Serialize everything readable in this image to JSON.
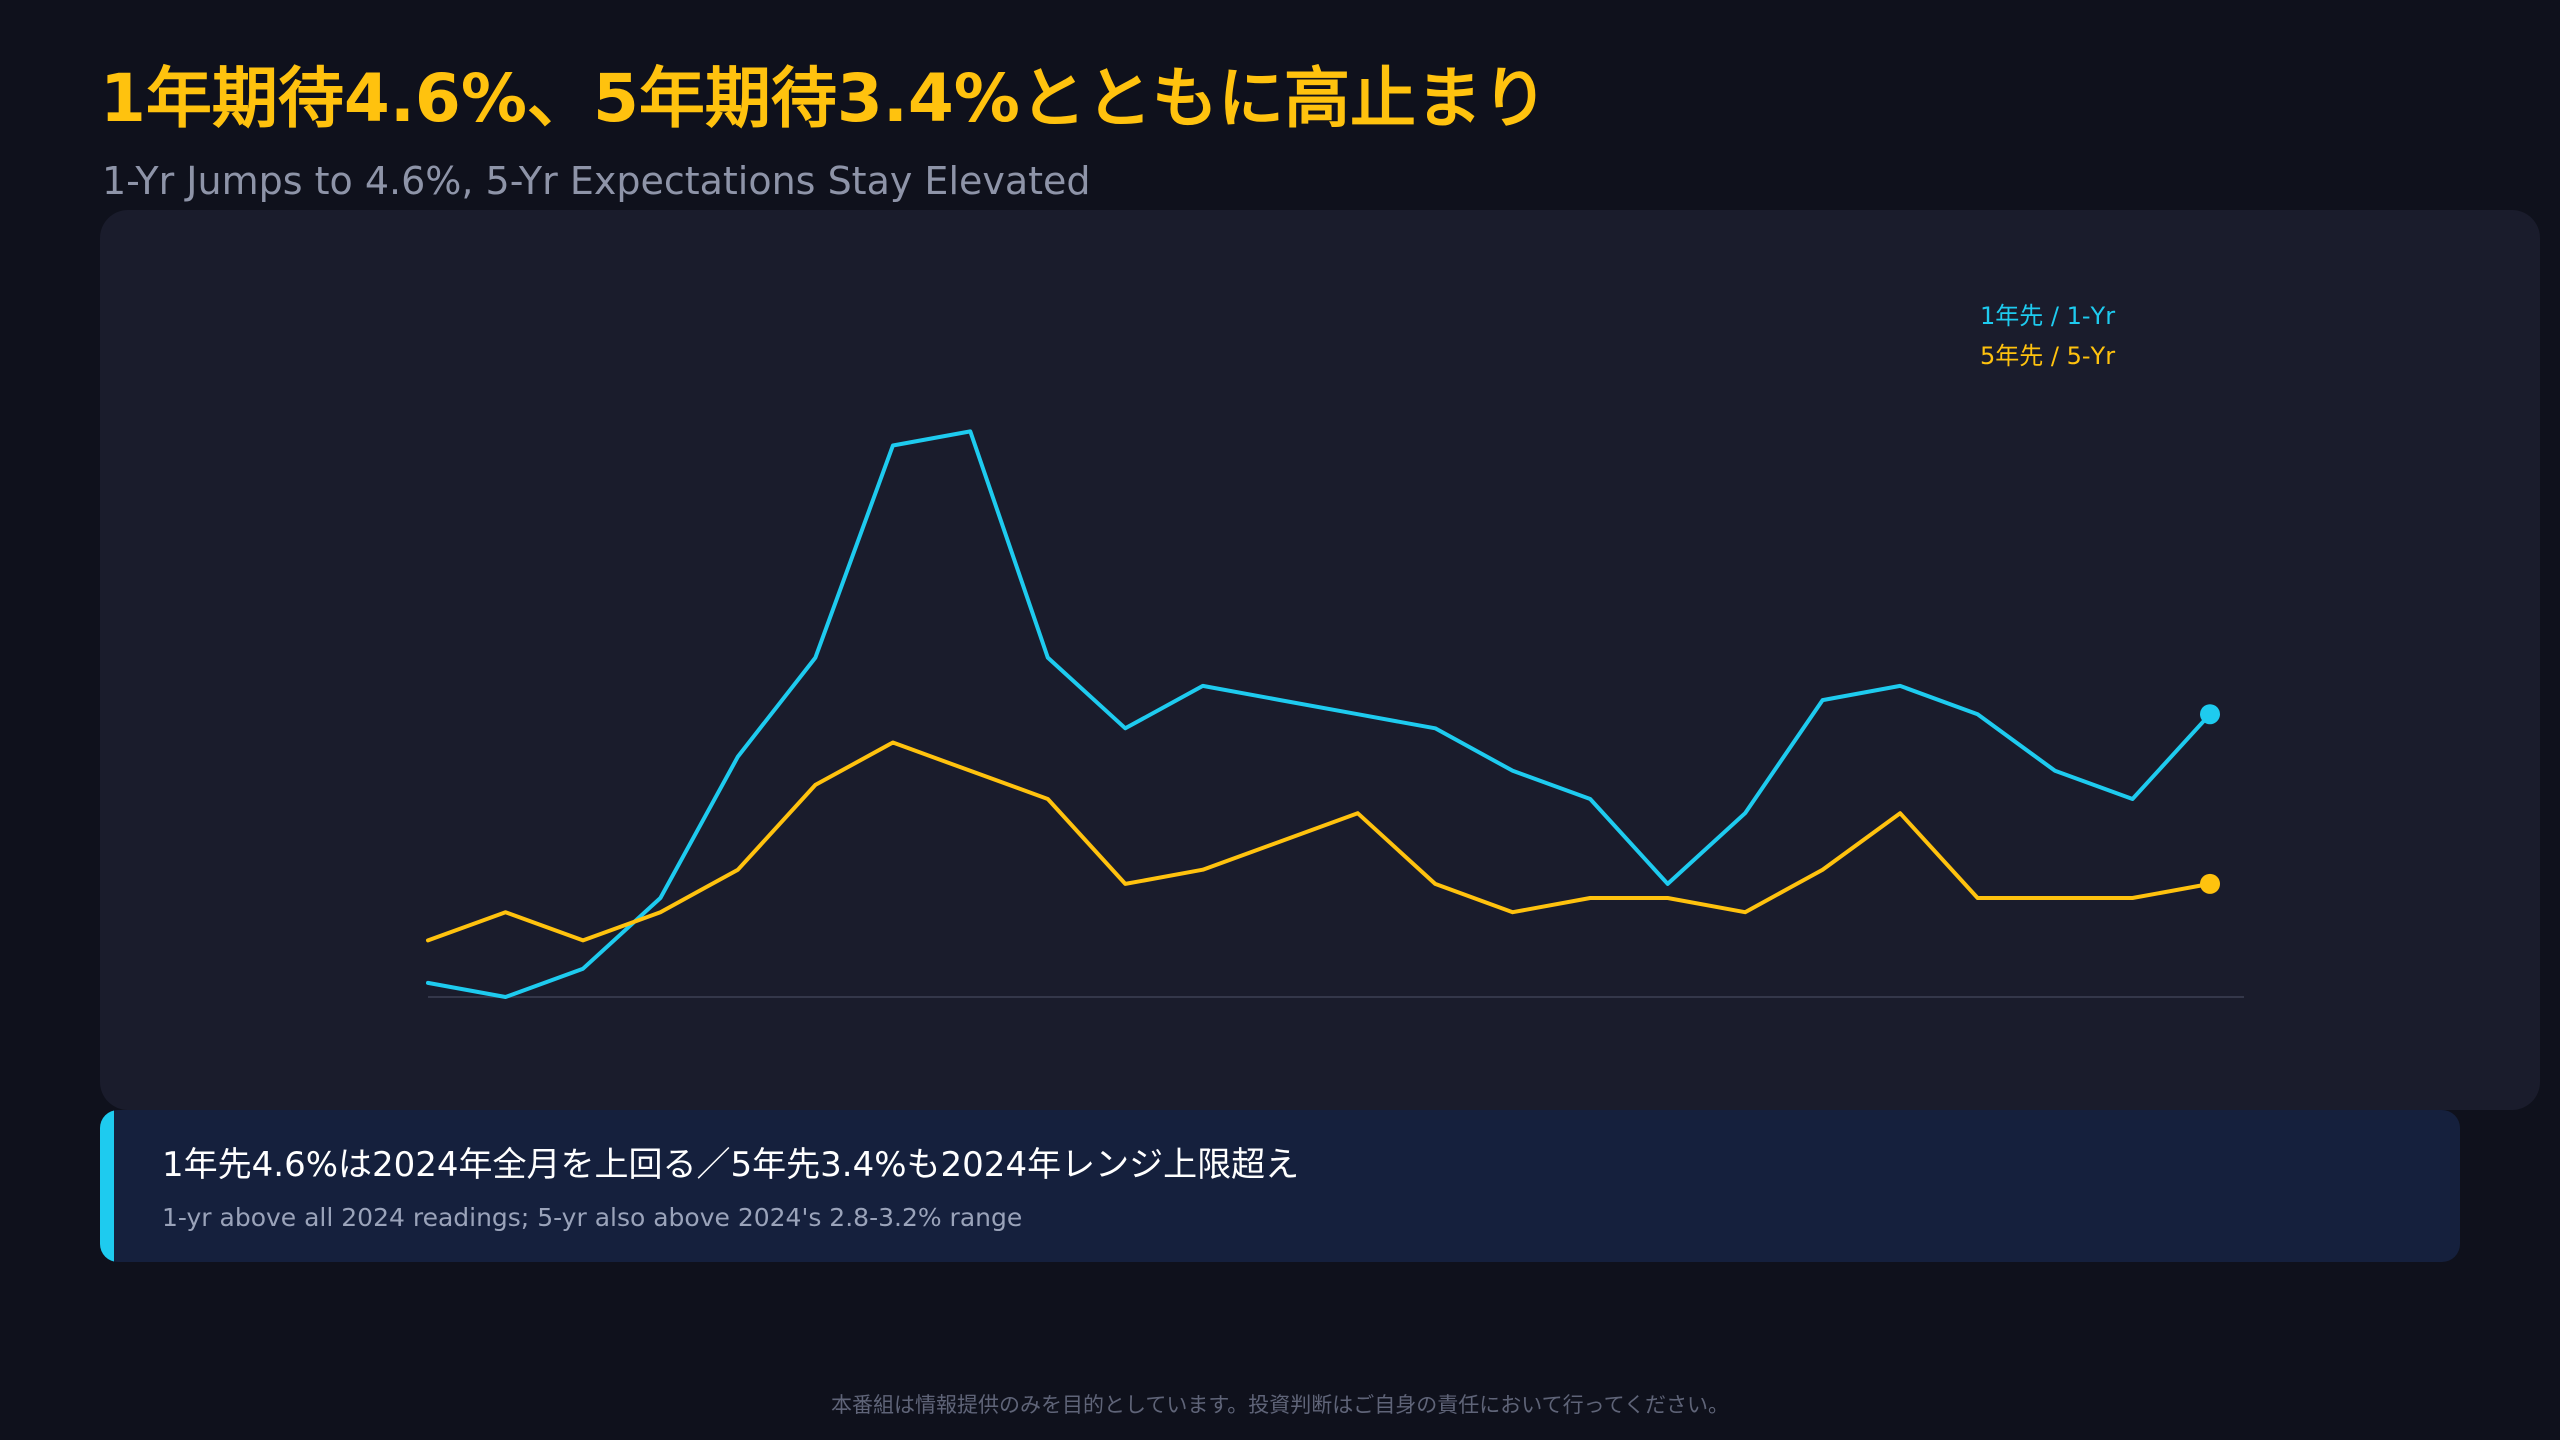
{
  "header": {
    "title": "1年期待4.6%、5年期待3.4%とともに高止まり",
    "subtitle": "1-Yr Jumps to 4.6%, 5-Yr Expectations Stay Elevated"
  },
  "chart_data": {
    "type": "line",
    "title": "1年期待4.6%、5年期待3.4%とともに高止まり",
    "subtitle": "1-Yr Jumps to 4.6%, 5-Yr Expectations Stay Elevated",
    "xlabel": "",
    "ylabel": "",
    "ylim": [
      2.3,
      7.3
    ],
    "grid": false,
    "legend_position": "top-right",
    "x": [
      1,
      2,
      3,
      4,
      5,
      6,
      7,
      8,
      9,
      10,
      11,
      12,
      13,
      14,
      15,
      16,
      17,
      18,
      19,
      20,
      21,
      22,
      23,
      24
    ],
    "series": [
      {
        "name": "1年先 / 1-Yr",
        "color": "#1ecbef",
        "values": [
          2.4,
          2.3,
          2.5,
          3.0,
          4.0,
          4.7,
          6.2,
          6.3,
          4.7,
          4.2,
          4.5,
          4.4,
          4.3,
          4.2,
          3.9,
          3.7,
          3.1,
          3.6,
          4.4,
          4.5,
          4.3,
          3.9,
          3.7,
          4.3
        ]
      },
      {
        "name": "5年先 / 5-Yr",
        "color": "#ffc20e",
        "values": [
          2.7,
          2.9,
          2.7,
          2.9,
          3.2,
          3.8,
          4.1,
          3.9,
          3.7,
          3.1,
          3.2,
          3.4,
          3.6,
          3.1,
          2.9,
          3.0,
          3.0,
          2.9,
          3.2,
          3.6,
          3.0,
          3.0,
          3.0,
          3.1
        ]
      }
    ]
  },
  "legend": {
    "one_yr": "1年先 / 1-Yr",
    "five_yr": "5年先 / 5-Yr"
  },
  "note": {
    "main": "1年先4.6%は2024年全月を上回る／5年先3.4%も2024年レンジ上限超え",
    "sub": "1-yr above all 2024 readings; 5-yr also above 2024's 2.8-3.2% range"
  },
  "footer": "本番組は情報提供のみを目的としています。投資判断はご自身の責任において行ってください。"
}
